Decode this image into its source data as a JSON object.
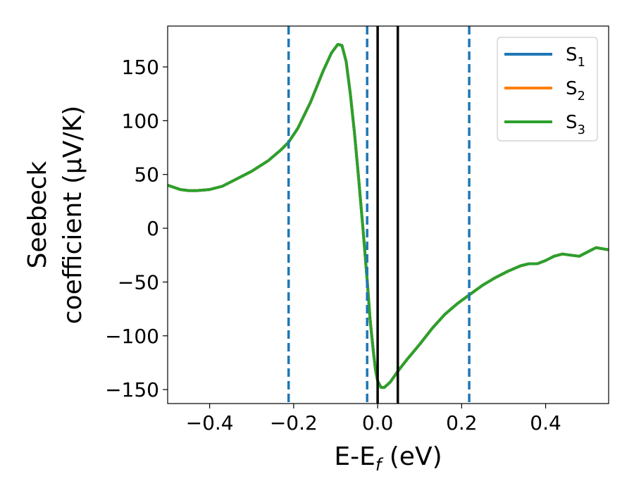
{
  "chart_data": {
    "type": "line",
    "xlabel": {
      "main": "E-E",
      "sub": "f",
      "unit": " (eV)"
    },
    "ylabel": {
      "line1": "Seebeck",
      "line2": "coefficient  (μV/K)"
    },
    "xlim": [
      -0.5,
      0.55
    ],
    "ylim": [
      -163,
      188
    ],
    "xticks": [
      {
        "value": -0.4,
        "label": "−0.4"
      },
      {
        "value": -0.2,
        "label": "−0.2"
      },
      {
        "value": 0.0,
        "label": "0.0"
      },
      {
        "value": 0.2,
        "label": "0.2"
      },
      {
        "value": 0.4,
        "label": "0.4"
      }
    ],
    "yticks": [
      {
        "value": 150,
        "label": "150"
      },
      {
        "value": 100,
        "label": "100"
      },
      {
        "value": 50,
        "label": "50"
      },
      {
        "value": 0,
        "label": "0"
      },
      {
        "value": -50,
        "label": "−50"
      },
      {
        "value": -100,
        "label": "−100"
      },
      {
        "value": -150,
        "label": "−150"
      }
    ],
    "grid": false,
    "legend_position": "top-right",
    "vlines_dashed": {
      "x": [
        -0.212,
        -0.025,
        0.218
      ],
      "color": "#1f77b4"
    },
    "vlines_solid": {
      "x": [
        0.0,
        0.048
      ],
      "color": "#000000"
    },
    "x": [
      -0.5,
      -0.47,
      -0.45,
      -0.43,
      -0.4,
      -0.37,
      -0.34,
      -0.3,
      -0.26,
      -0.23,
      -0.212,
      -0.19,
      -0.16,
      -0.13,
      -0.11,
      -0.095,
      -0.085,
      -0.075,
      -0.065,
      -0.055,
      -0.045,
      -0.035,
      -0.025,
      -0.018,
      -0.01,
      -0.005,
      0.0,
      0.008,
      0.016,
      0.03,
      0.048,
      0.07,
      0.1,
      0.13,
      0.16,
      0.19,
      0.218,
      0.25,
      0.28,
      0.31,
      0.34,
      0.36,
      0.38,
      0.4,
      0.42,
      0.44,
      0.46,
      0.48,
      0.5,
      0.52,
      0.55
    ],
    "series": [
      {
        "name_main": "S",
        "name_sub": "1",
        "color": "#1f77b4",
        "values": [
          40,
          36,
          35,
          35,
          36,
          39,
          45,
          53,
          63,
          73,
          80,
          93,
          117,
          146,
          163,
          171,
          170,
          155,
          125,
          88,
          45,
          0,
          -48,
          -85,
          -115,
          -132,
          -142,
          -148,
          -148,
          -143,
          -133,
          -122,
          -108,
          -93,
          -80,
          -70,
          -62,
          -53,
          -46,
          -40,
          -35,
          -33,
          -33,
          -30,
          -26,
          -24,
          -25,
          -26,
          -22,
          -18,
          -20
        ]
      },
      {
        "name_main": "S",
        "name_sub": "2",
        "color": "#ff7f0e",
        "values": [
          40,
          36,
          35,
          35,
          36,
          39,
          45,
          53,
          63,
          73,
          80,
          93,
          117,
          146,
          163,
          171,
          170,
          155,
          125,
          88,
          45,
          0,
          -48,
          -85,
          -115,
          -132,
          -142,
          -148,
          -148,
          -143,
          -133,
          -122,
          -108,
          -93,
          -80,
          -70,
          -62,
          -53,
          -46,
          -40,
          -35,
          -33,
          -33,
          -30,
          -26,
          -24,
          -25,
          -26,
          -22,
          -18,
          -20
        ]
      },
      {
        "name_main": "S",
        "name_sub": "3",
        "color": "#2ca02c",
        "values": [
          40,
          36,
          35,
          35,
          36,
          39,
          45,
          53,
          63,
          73,
          80,
          93,
          117,
          146,
          163,
          171,
          170,
          155,
          125,
          88,
          45,
          0,
          -48,
          -85,
          -115,
          -132,
          -142,
          -148,
          -148,
          -143,
          -133,
          -122,
          -108,
          -93,
          -80,
          -70,
          -62,
          -53,
          -46,
          -40,
          -35,
          -33,
          -33,
          -30,
          -26,
          -24,
          -25,
          -26,
          -22,
          -18,
          -20
        ]
      }
    ]
  }
}
